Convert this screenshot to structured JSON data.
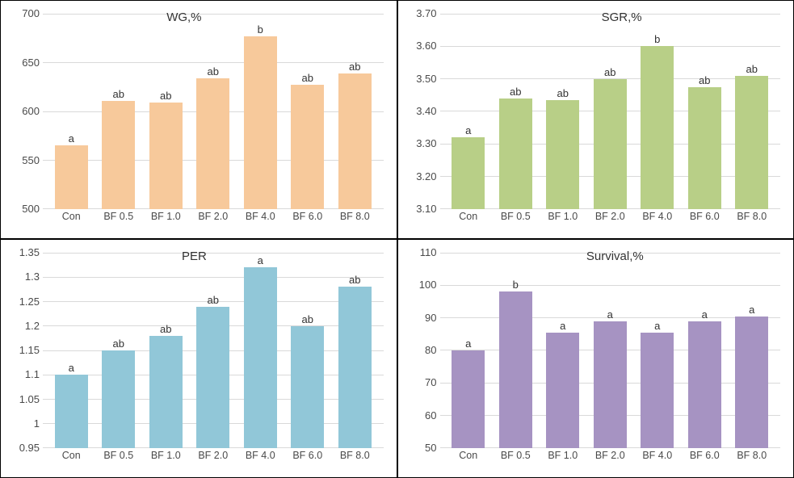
{
  "categories": [
    "Con",
    "BF 0.5",
    "BF 1.0",
    "BF 2.0",
    "BF 4.0",
    "BF 6.0",
    "BF 8.0"
  ],
  "panels": [
    {
      "id": "wg",
      "title": "WG,%",
      "title_left_pct": 42,
      "type": "bar",
      "ylim": [
        500,
        700
      ],
      "ytick_step": 50,
      "yticks": [
        "700",
        "650",
        "600",
        "550",
        "500"
      ],
      "values": [
        565,
        611,
        609,
        634,
        677,
        627,
        639
      ],
      "sig": [
        "a",
        "ab",
        "ab",
        "ab",
        "b",
        "ab",
        "ab"
      ],
      "bar_color": "#f7c99b",
      "grid_color": "#d9d9d9",
      "background_color": "#ffffff"
    },
    {
      "id": "sgr",
      "title": "SGR,%",
      "title_left_pct": 52,
      "type": "bar",
      "ylim": [
        3.1,
        3.7
      ],
      "ytick_step": 0.1,
      "yticks": [
        "3.70",
        "3.60",
        "3.50",
        "3.40",
        "3.30",
        "3.20",
        "3.10"
      ],
      "values": [
        3.32,
        3.44,
        3.435,
        3.5,
        3.6,
        3.475,
        3.51
      ],
      "sig": [
        "a",
        "ab",
        "ab",
        "ab",
        "b",
        "ab",
        "ab"
      ],
      "bar_color": "#b8cf87",
      "grid_color": "#d9d9d9",
      "background_color": "#ffffff"
    },
    {
      "id": "per",
      "title": "PER",
      "title_left_pct": 46,
      "type": "bar",
      "ylim": [
        0.95,
        1.35
      ],
      "ytick_step": 0.05,
      "yticks": [
        "1.35",
        "1.3",
        "1.25",
        "1.2",
        "1.15",
        "1.1",
        "1.05",
        "1",
        "0.95"
      ],
      "values": [
        1.1,
        1.15,
        1.18,
        1.24,
        1.32,
        1.2,
        1.28
      ],
      "sig": [
        "a",
        "ab",
        "ab",
        "ab",
        "a",
        "ab",
        "ab"
      ],
      "bar_color": "#91c7d8",
      "grid_color": "#d9d9d9",
      "background_color": "#ffffff"
    },
    {
      "id": "survival",
      "title": "Survival,%",
      "title_left_pct": 48,
      "type": "bar",
      "ylim": [
        50,
        110
      ],
      "ytick_step": 10,
      "yticks": [
        "110",
        "100",
        "90",
        "80",
        "70",
        "60",
        "50"
      ],
      "values": [
        80,
        98,
        85.5,
        89,
        85.5,
        89,
        90.5
      ],
      "sig": [
        "a",
        "b",
        "a",
        "a",
        "a",
        "a",
        "a"
      ],
      "bar_color": "#a693c2",
      "grid_color": "#d9d9d9",
      "background_color": "#ffffff"
    }
  ],
  "label_fontsize": 13,
  "title_fontsize": 15,
  "sig_fontsize": 13,
  "font_family": "Arial"
}
